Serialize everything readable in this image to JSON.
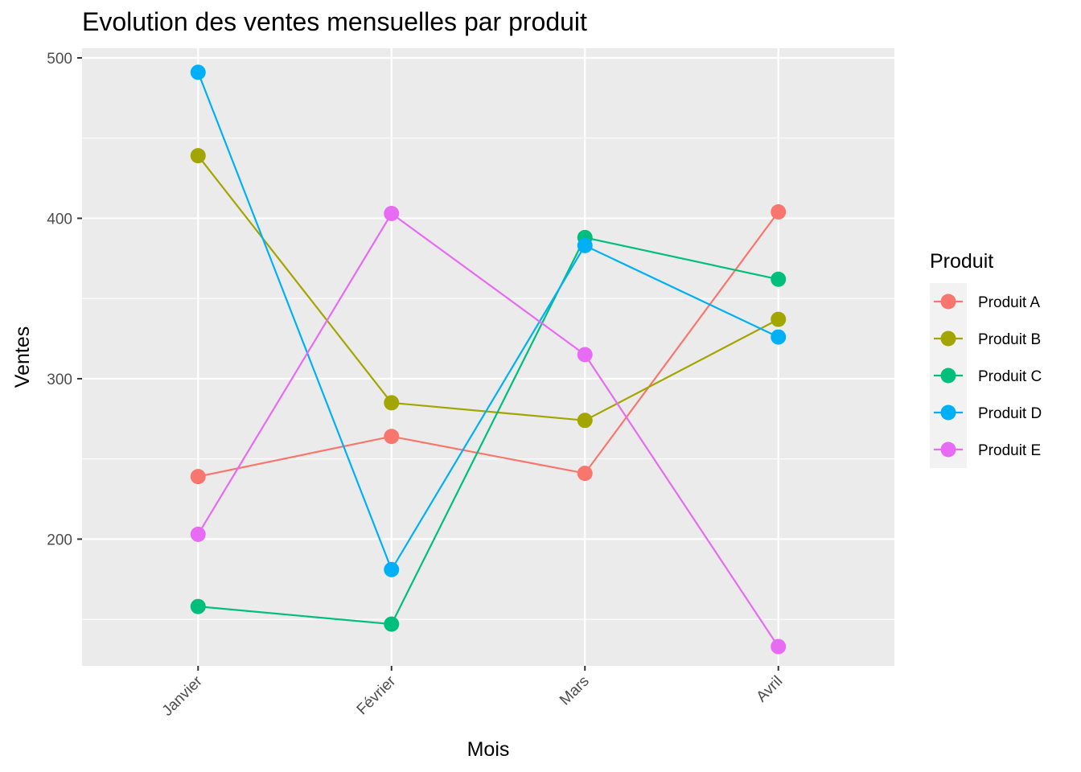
{
  "chart_data": {
    "type": "line",
    "title": "Evolution des ventes mensuelles par produit",
    "xlabel": "Mois",
    "ylabel": "Ventes",
    "categories": [
      "Janvier",
      "Février",
      "Mars",
      "Avril"
    ],
    "y_ticks": [
      200,
      300,
      400,
      500
    ],
    "ylim": [
      121,
      506
    ],
    "grid": true,
    "legend": {
      "title": "Produit",
      "position": "right"
    },
    "series": [
      {
        "name": "Produit A",
        "color": "#F8766D",
        "values": [
          239,
          264,
          241,
          404
        ]
      },
      {
        "name": "Produit B",
        "color": "#A3A500",
        "values": [
          439,
          285,
          274,
          337
        ]
      },
      {
        "name": "Produit C",
        "color": "#00BF7D",
        "values": [
          158,
          147,
          388,
          362
        ]
      },
      {
        "name": "Produit D",
        "color": "#00B0F6",
        "values": [
          491,
          181,
          383,
          326
        ]
      },
      {
        "name": "Produit E",
        "color": "#E76BF3",
        "values": [
          203,
          403,
          315,
          133
        ]
      }
    ]
  }
}
